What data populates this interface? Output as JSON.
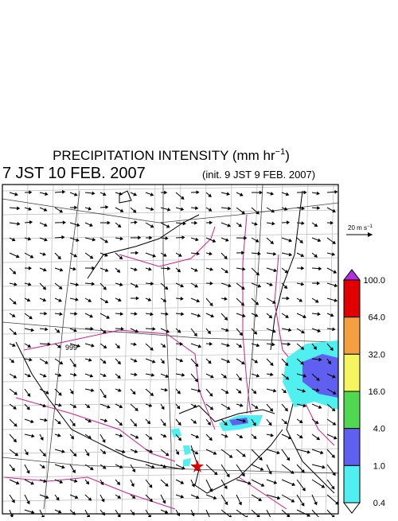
{
  "header": {
    "title": "PRECIPITATION INTENSITY (mm hr",
    "title_exponent": "−1",
    "title_close": ")",
    "valid_time": "7 JST 10 FEB. 2007",
    "init_time": "(init. 9 JST 9 FEB. 2007)"
  },
  "wind_scale": {
    "label": "20 m s",
    "exponent": "−1"
  },
  "contour_label": "999",
  "colorbar": {
    "labels": [
      "100.0",
      "64.0",
      "32.0",
      "16.0",
      "4.0",
      "1.0",
      "0.4"
    ],
    "colors": [
      "#e00000",
      "#f5a040",
      "#f5f560",
      "#50d850",
      "#6060f0",
      "#50f0f0"
    ],
    "over_color": "#b030e0",
    "under_color": "#ffffff"
  }
}
